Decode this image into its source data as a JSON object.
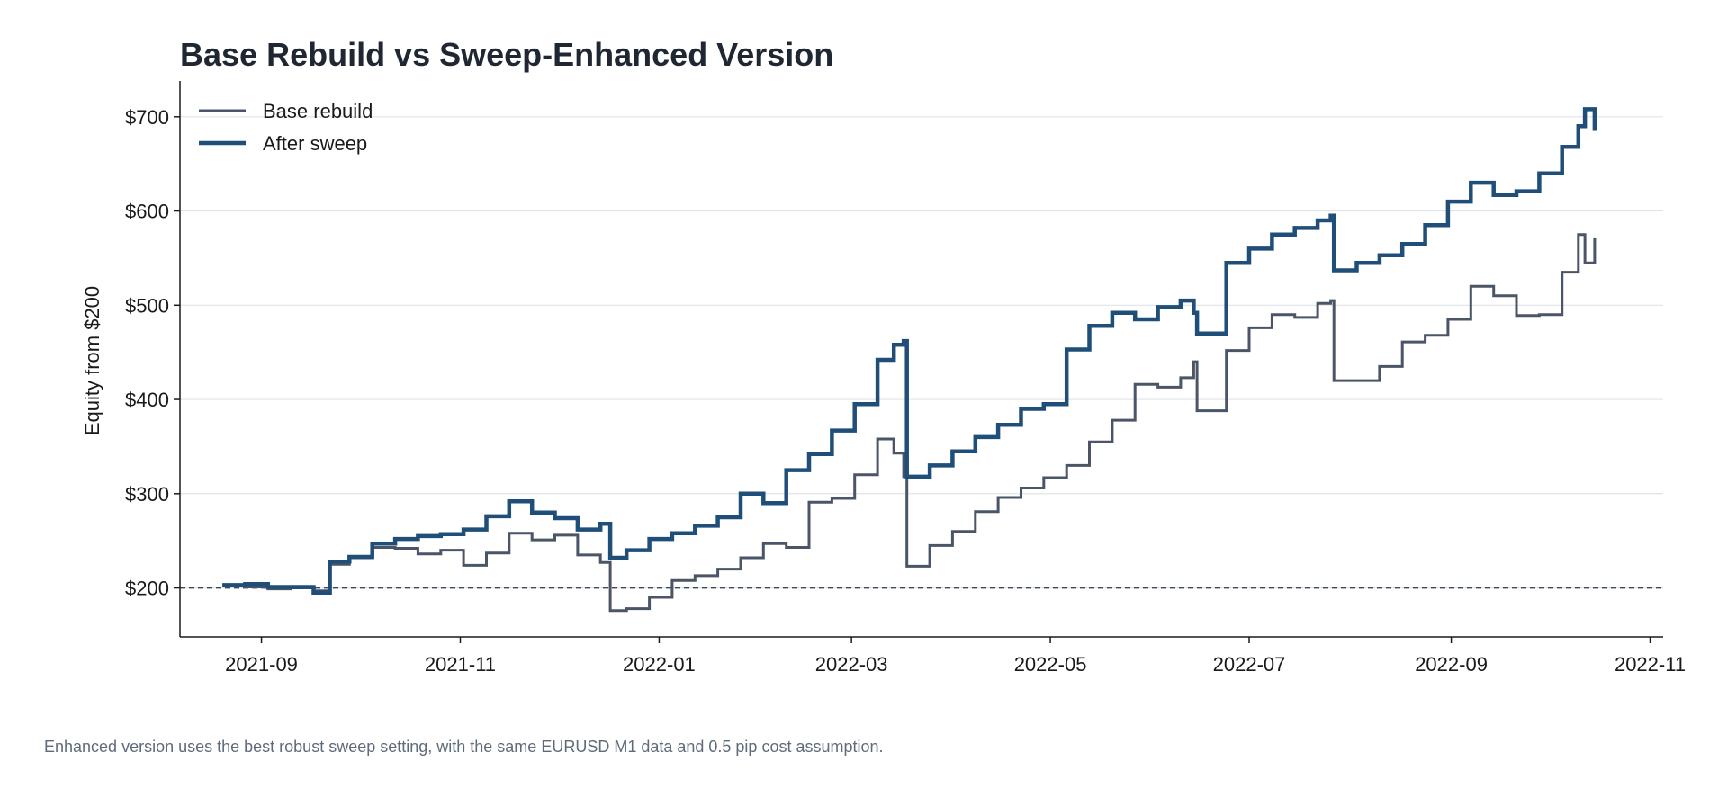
{
  "chart_data": {
    "type": "line",
    "title": "Base Rebuild vs Sweep-Enhanced Version",
    "ylabel": "Equity from $200",
    "xlabel": "",
    "xlim": [
      "2021-08-07",
      "2022-11-05"
    ],
    "ylim": [
      148,
      738
    ],
    "x_ticks": [
      "2021-09",
      "2021-11",
      "2022-01",
      "2022-03",
      "2022-05",
      "2022-07",
      "2022-09",
      "2022-11"
    ],
    "y_ticks": [
      200,
      300,
      400,
      500,
      600,
      700
    ],
    "y_tick_labels": [
      "$200",
      "$300",
      "$400",
      "$500",
      "$600",
      "$700"
    ],
    "grid": "horizontal",
    "legend_position": "top-left",
    "reference_line": {
      "y": 200,
      "style": "dashed",
      "color": "#3a4a5a"
    },
    "series": [
      {
        "name": "Base rebuild",
        "color": "#4a5568",
        "x": [
          "2021-08-20",
          "2021-08-27",
          "2021-09-03",
          "2021-09-10",
          "2021-09-17",
          "2021-09-22",
          "2021-09-28",
          "2021-10-05",
          "2021-10-12",
          "2021-10-19",
          "2021-10-26",
          "2021-11-02",
          "2021-11-09",
          "2021-11-16",
          "2021-11-23",
          "2021-11-30",
          "2021-12-07",
          "2021-12-14",
          "2021-12-17",
          "2021-12-22",
          "2021-12-29",
          "2022-01-05",
          "2022-01-12",
          "2022-01-19",
          "2022-01-26",
          "2022-02-02",
          "2022-02-09",
          "2022-02-16",
          "2022-02-23",
          "2022-03-02",
          "2022-03-09",
          "2022-03-14",
          "2022-03-17",
          "2022-03-18",
          "2022-03-25",
          "2022-04-01",
          "2022-04-08",
          "2022-04-15",
          "2022-04-22",
          "2022-04-29",
          "2022-05-06",
          "2022-05-13",
          "2022-05-20",
          "2022-05-27",
          "2022-06-03",
          "2022-06-10",
          "2022-06-14",
          "2022-06-15",
          "2022-06-24",
          "2022-07-01",
          "2022-07-08",
          "2022-07-15",
          "2022-07-22",
          "2022-07-26",
          "2022-07-27",
          "2022-08-03",
          "2022-08-10",
          "2022-08-17",
          "2022-08-24",
          "2022-08-31",
          "2022-09-07",
          "2022-09-14",
          "2022-09-21",
          "2022-09-28",
          "2022-10-05",
          "2022-10-10",
          "2022-10-12",
          "2022-10-15"
        ],
        "values": [
          202,
          201,
          199,
          200,
          197,
          225,
          232,
          243,
          242,
          236,
          240,
          224,
          237,
          258,
          251,
          256,
          235,
          227,
          176,
          178,
          190,
          208,
          213,
          220,
          232,
          247,
          243,
          291,
          295,
          320,
          358,
          343,
          318,
          223,
          245,
          260,
          281,
          296,
          306,
          317,
          330,
          355,
          378,
          416,
          413,
          423,
          440,
          388,
          452,
          476,
          490,
          487,
          502,
          505,
          420,
          420,
          435,
          461,
          468,
          485,
          520,
          510,
          489,
          490,
          535,
          575,
          545,
          571
        ]
      },
      {
        "name": "After sweep",
        "color": "#1f4e79",
        "x": [
          "2021-08-20",
          "2021-08-27",
          "2021-09-03",
          "2021-09-10",
          "2021-09-17",
          "2021-09-22",
          "2021-09-28",
          "2021-10-05",
          "2021-10-12",
          "2021-10-19",
          "2021-10-26",
          "2021-11-02",
          "2021-11-09",
          "2021-11-16",
          "2021-11-23",
          "2021-11-30",
          "2021-12-07",
          "2021-12-14",
          "2021-12-17",
          "2021-12-22",
          "2021-12-29",
          "2022-01-05",
          "2022-01-12",
          "2022-01-19",
          "2022-01-26",
          "2022-02-02",
          "2022-02-09",
          "2022-02-16",
          "2022-02-23",
          "2022-03-02",
          "2022-03-09",
          "2022-03-14",
          "2022-03-17",
          "2022-03-18",
          "2022-03-25",
          "2022-04-01",
          "2022-04-08",
          "2022-04-15",
          "2022-04-22",
          "2022-04-29",
          "2022-05-06",
          "2022-05-13",
          "2022-05-20",
          "2022-05-27",
          "2022-06-03",
          "2022-06-10",
          "2022-06-14",
          "2022-06-15",
          "2022-06-24",
          "2022-07-01",
          "2022-07-08",
          "2022-07-15",
          "2022-07-22",
          "2022-07-26",
          "2022-07-27",
          "2022-08-03",
          "2022-08-10",
          "2022-08-17",
          "2022-08-24",
          "2022-08-31",
          "2022-09-07",
          "2022-09-14",
          "2022-09-21",
          "2022-09-28",
          "2022-10-05",
          "2022-10-10",
          "2022-10-12",
          "2022-10-15"
        ],
        "values": [
          203,
          204,
          201,
          201,
          195,
          228,
          233,
          247,
          252,
          255,
          257,
          262,
          276,
          292,
          280,
          274,
          262,
          268,
          232,
          240,
          252,
          258,
          266,
          275,
          300,
          290,
          325,
          342,
          367,
          395,
          442,
          458,
          462,
          318,
          330,
          345,
          360,
          373,
          390,
          395,
          453,
          478,
          492,
          485,
          498,
          505,
          492,
          470,
          545,
          560,
          575,
          582,
          590,
          595,
          537,
          545,
          553,
          565,
          585,
          610,
          630,
          617,
          621,
          640,
          668,
          690,
          708,
          685
        ]
      }
    ]
  },
  "caption": "Enhanced version uses the best robust sweep setting, with the same EURUSD M1 data and 0.5 pip cost assumption."
}
